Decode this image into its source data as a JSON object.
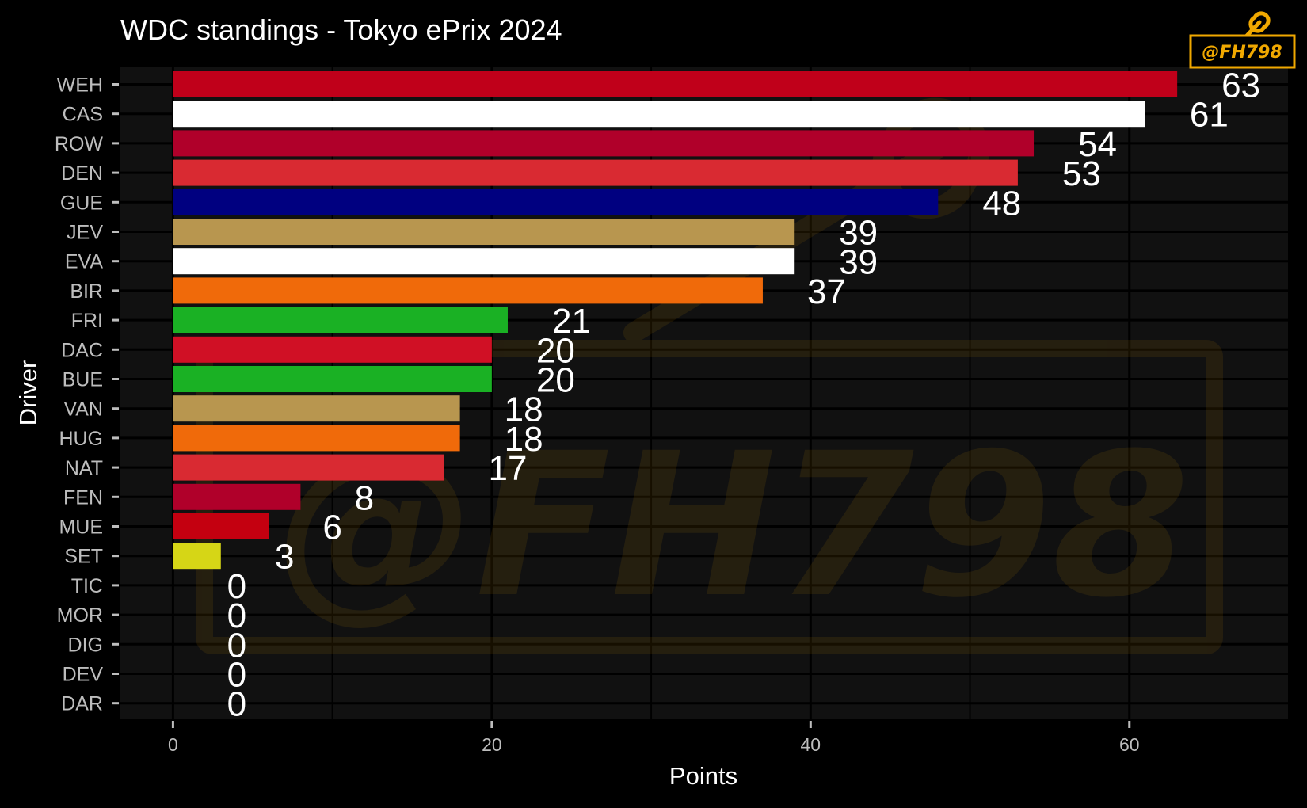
{
  "chart_data": {
    "type": "bar",
    "orientation": "horizontal",
    "title": "WDC standings - Tokyo ePrix 2024",
    "xlabel": "Points",
    "ylabel": "Driver",
    "xlim": [
      -3.3,
      70
    ],
    "x_ticks": [
      0,
      20,
      40,
      60
    ],
    "x_minor_gridlines": [
      10,
      30,
      50,
      70
    ],
    "grid": true,
    "categories": [
      "WEH",
      "CAS",
      "ROW",
      "DEN",
      "GUE",
      "JEV",
      "EVA",
      "BIR",
      "FRI",
      "DAC",
      "BUE",
      "VAN",
      "HUG",
      "NAT",
      "FEN",
      "MUE",
      "SET",
      "TIC",
      "MOR",
      "DIG",
      "DEV",
      "DAR"
    ],
    "values": [
      63,
      61,
      54,
      53,
      48,
      39,
      39,
      37,
      21,
      20,
      20,
      18,
      18,
      17,
      8,
      6,
      3,
      0,
      0,
      0,
      0,
      0
    ],
    "colors": [
      "#c0001a",
      "#ffffff",
      "#b0002a",
      "#d92a32",
      "#000080",
      "#b8964f",
      "#ffffff",
      "#f06a0a",
      "#1ab124",
      "#d01025",
      "#1ab124",
      "#b8964f",
      "#f06a0a",
      "#d92a32",
      "#b0002a",
      "#c40010",
      "#d6d616",
      "#888888",
      "#888888",
      "#888888",
      "#888888",
      "#888888"
    ],
    "data_labels": [
      "63",
      "61",
      "54",
      "53",
      "48",
      "39",
      "39",
      "37",
      "21",
      "20",
      "20",
      "18",
      "18",
      "17",
      "8",
      "6",
      "3",
      "0",
      "0",
      "0",
      "0",
      "0"
    ],
    "colors_theme": {
      "background": "#000000",
      "panel": "#111111",
      "grid": "#000000",
      "text": "#ffffff",
      "tick_text": "#bdbdbd",
      "watermark": "#f0a800"
    }
  },
  "watermark": {
    "text": "@FH798"
  }
}
